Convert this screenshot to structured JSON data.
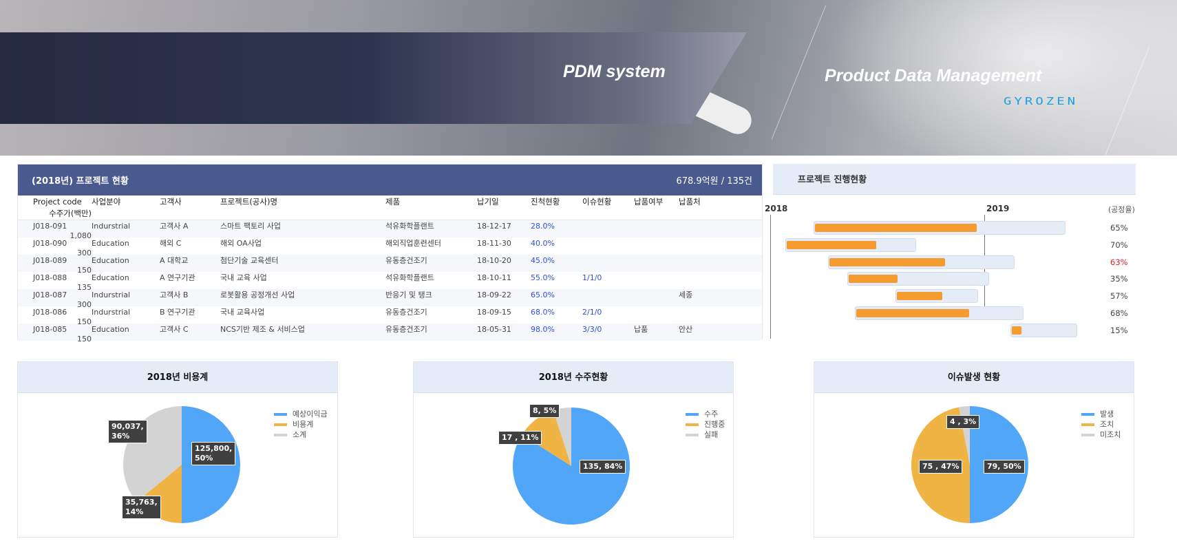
{
  "hero": {
    "title": "PDM system",
    "subtitle": "Product Data Management",
    "logo": "GYROZEN"
  },
  "projects": {
    "title": "(2018년) 프로젝트 현황",
    "summary": "678.9억원 / 135건",
    "columns": [
      "Project code",
      "사업분야",
      "고객사",
      "프로젝트(공사)명",
      "제품",
      "납기일",
      "진척현황",
      "이슈현황",
      "납품여부",
      "납품처",
      "수주가(백만)"
    ],
    "rows": [
      [
        "J018-091",
        "Indurstrial",
        "고객사 A",
        "스마트 팩토리 사업",
        "석유화학플랜트",
        "18-12-17",
        "28.0%",
        "",
        "",
        "",
        "1,080"
      ],
      [
        "J018-090",
        "Education",
        "해외 C",
        "해외 OA사업",
        "해외직업훈련센터",
        "18-11-30",
        "40.0%",
        "",
        "",
        "",
        "300"
      ],
      [
        "J018-089",
        "Education",
        "A 대학교",
        "첨단기술 교육센터",
        "유동층건조기",
        "18-10-20",
        "45.0%",
        "",
        "",
        "",
        "150"
      ],
      [
        "J018-088",
        "Education",
        "A 연구기관",
        "국내 교육 사업",
        "석유화학플랜트",
        "18-10-11",
        "55.0%",
        "1/1/0",
        "",
        "",
        "135"
      ],
      [
        "J018-087",
        "Indurstrial",
        "고객사 B",
        "로봇활용 공정개선 사업",
        "반응기 및 탱크",
        "18-09-22",
        "65.0%",
        "",
        "",
        "세종",
        "300"
      ],
      [
        "J018-086",
        "Indurstrial",
        "B 연구기관",
        "국내 교육사업",
        "유동층건조기",
        "18-09-15",
        "68.0%",
        "2/1/0",
        "",
        "",
        "150"
      ],
      [
        "J018-085",
        "Education",
        "고객사 C",
        "NCS기반 제조 & 서비스업",
        "유동층건조기",
        "18-05-31",
        "98.0%",
        "3/3/0",
        "납품",
        "안산",
        "150"
      ]
    ]
  },
  "gantt": {
    "title": "프로젝트 진행현황",
    "years": [
      "2018",
      "2019"
    ],
    "unit": "(공정율)",
    "bar_color": "#f69b2f",
    "alert_color": "#e0202a",
    "rows": [
      {
        "pct": 65,
        "label": "65%"
      },
      {
        "pct": 70,
        "label": "70%"
      },
      {
        "pct": 63,
        "label": "63%",
        "alert": true
      },
      {
        "pct": 35,
        "label": "35%"
      },
      {
        "pct": 57,
        "label": "57%"
      },
      {
        "pct": 68,
        "label": "68%"
      },
      {
        "pct": 15,
        "label": "15%"
      }
    ]
  },
  "chart_data": [
    {
      "type": "pie",
      "title": "2018년 비용계",
      "categories": [
        "예상이익금",
        "비용계",
        "소계"
      ],
      "values": [
        125800,
        35763,
        90037
      ],
      "percents": [
        50,
        14,
        36
      ],
      "labels": [
        "125,800,\n50%",
        "35,763,\n14%",
        "90,037,\n36%"
      ],
      "colors": [
        "#52a6f8",
        "#efb443",
        "#d3d3d3"
      ],
      "legend": "top-right"
    },
    {
      "type": "pie",
      "title": "2018년 수주현황",
      "categories": [
        "수주",
        "진행중",
        "실패"
      ],
      "values": [
        135,
        17,
        8
      ],
      "percents": [
        84,
        11,
        5
      ],
      "labels": [
        "135, 84%",
        "17 , 11%",
        "8, 5%"
      ],
      "colors": [
        "#52a6f8",
        "#efb443",
        "#d3d3d3"
      ],
      "legend": "top-right"
    },
    {
      "type": "pie",
      "title": "이슈발생 현황",
      "categories": [
        "발생",
        "조치",
        "미조치"
      ],
      "values": [
        79,
        75,
        4
      ],
      "percents": [
        50,
        47,
        3
      ],
      "labels": [
        "79, 50%",
        "75 , 47%",
        "4 , 3%"
      ],
      "colors": [
        "#52a6f8",
        "#efb443",
        "#d3d3d3"
      ],
      "legend": "top-right"
    }
  ]
}
